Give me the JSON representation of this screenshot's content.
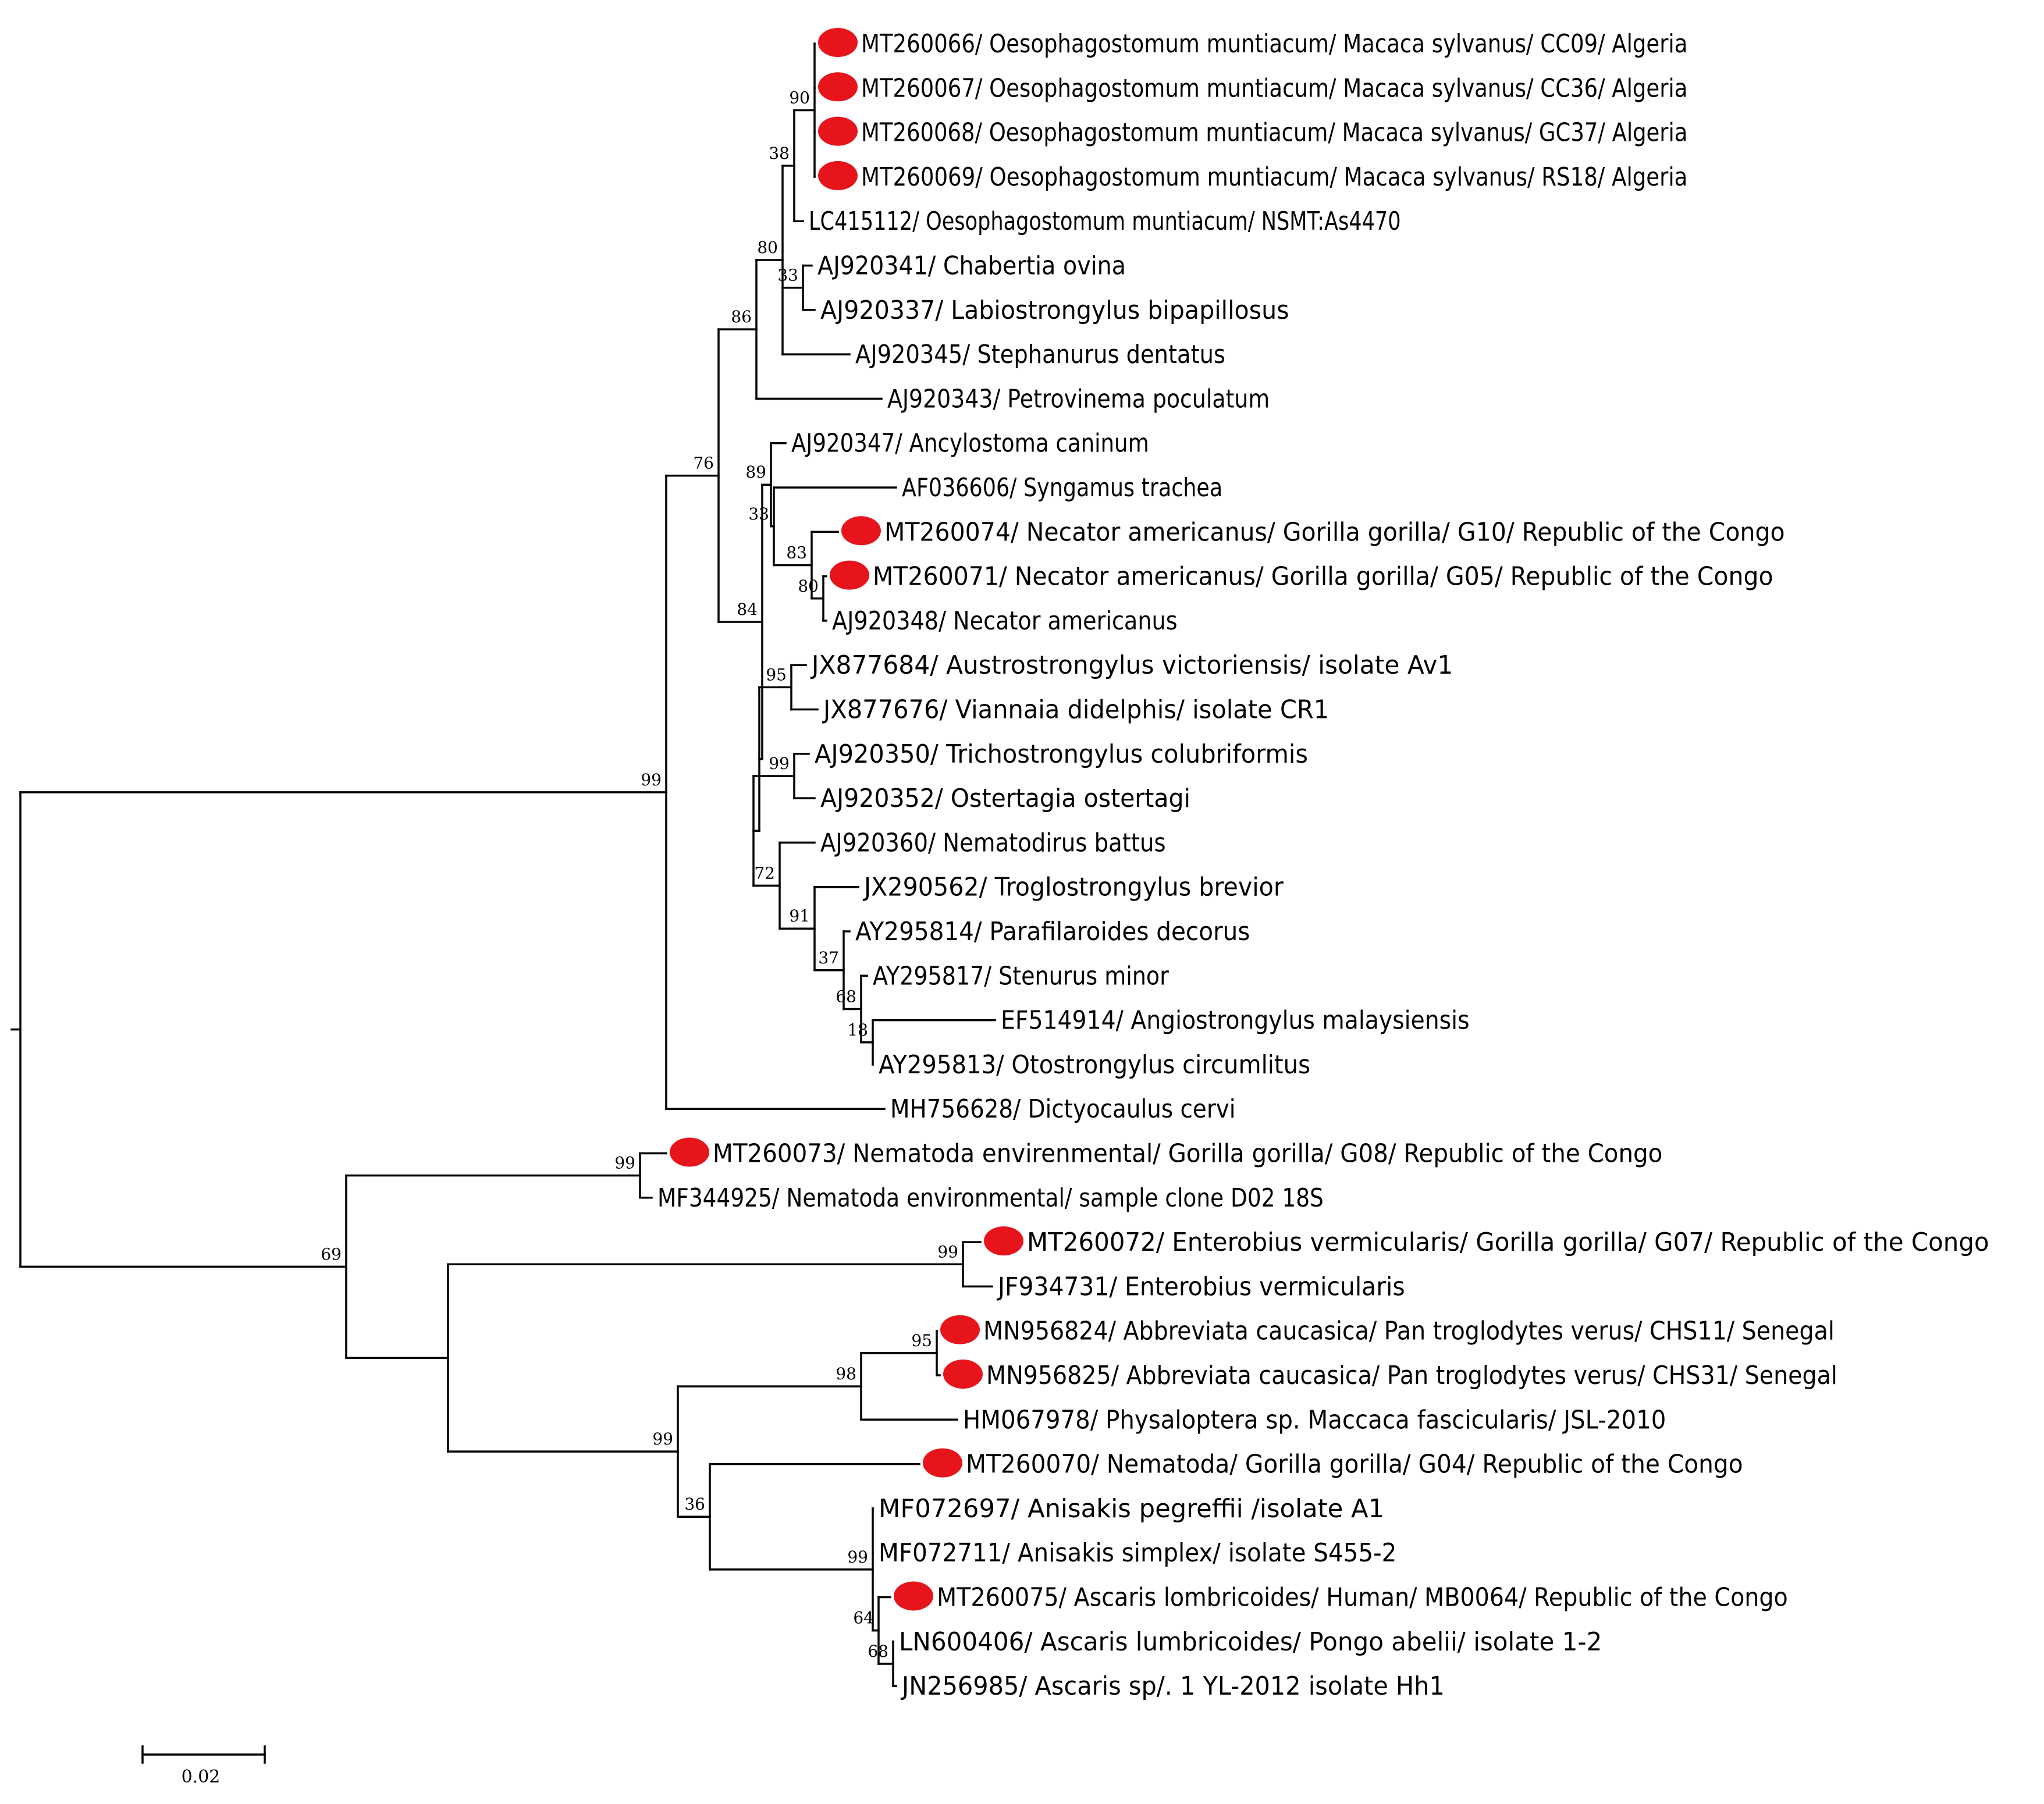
{
  "colors": {
    "marker": "#e8141b",
    "line": "#000000"
  },
  "tree": {
    "name": "root",
    "children": [
      {
        "boot": "99",
        "children": [
          {
            "boot": "76",
            "children": [
              {
                "boot": "86",
                "children": [
                  {
                    "boot": "80",
                    "children": [
                      {
                        "boot": "38",
                        "children": [
                          {
                            "boot": "90",
                            "children": [
                              {
                                "name": "MT260066/ Oesophagostomum muntiacum/ Macaca sylvanus/ CC09/ Algeria",
                                "marked": true
                              },
                              {
                                "name": "MT260067/ Oesophagostomum muntiacum/ Macaca sylvanus/ CC36/ Algeria",
                                "marked": true
                              },
                              {
                                "name": "MT260068/ Oesophagostomum muntiacum/ Macaca sylvanus/ GC37/ Algeria",
                                "marked": true
                              },
                              {
                                "name": "MT260069/ Oesophagostomum muntiacum/ Macaca sylvanus/ RS18/ Algeria",
                                "marked": true
                              }
                            ]
                          },
                          {
                            "name": "LC415112/ Oesophagostomum muntiacum/ NSMT:As4470"
                          }
                        ]
                      },
                      {
                        "boot": "33",
                        "children": [
                          {
                            "name": "AJ920341/ Chabertia ovina"
                          },
                          {
                            "name": "AJ920337/ Labiostrongylus bipapillosus"
                          }
                        ]
                      },
                      {
                        "name": "AJ920345/ Stephanurus dentatus"
                      }
                    ]
                  },
                  {
                    "name": "AJ920343/ Petrovinema poculatum"
                  }
                ]
              },
              {
                "boot": "84",
                "children": [
                  {
                    "boot": "89",
                    "children": [
                      {
                        "name": "AJ920347/ Ancylostoma caninum"
                      },
                      {
                        "boot": "33",
                        "children": [
                          {
                            "name": "AF036606/ Syngamus trachea"
                          },
                          {
                            "boot": "83",
                            "children": [
                              {
                                "name": "MT260074/ Necator americanus/ Gorilla gorilla/ G10/ Republic of the Congo",
                                "marked": true
                              },
                              {
                                "boot": "80",
                                "children": [
                                  {
                                    "name": "MT260071/ Necator americanus/ Gorilla gorilla/ G05/ Republic of the Congo",
                                    "marked": true
                                  },
                                  {
                                    "name": "AJ920348/ Necator americanus"
                                  }
                                ]
                              }
                            ]
                          }
                        ]
                      }
                    ]
                  },
                  {
                    "children": [
                      {
                        "boot": "95",
                        "children": [
                          {
                            "name": "JX877684/ Austrostrongylus victoriensis/ isolate Av1"
                          },
                          {
                            "name": "JX877676/ Viannaia didelphis/ isolate CR1"
                          }
                        ]
                      },
                      {
                        "children": [
                          {
                            "boot": "99",
                            "children": [
                              {
                                "name": "AJ920350/ Trichostrongylus colubriformis"
                              },
                              {
                                "name": "AJ920352/ Ostertagia ostertagi"
                              }
                            ]
                          },
                          {
                            "boot": "72",
                            "children": [
                              {
                                "name": "AJ920360/ Nematodirus battus"
                              },
                              {
                                "boot": "91",
                                "children": [
                                  {
                                    "name": "JX290562/ Troglostrongylus brevior"
                                  },
                                  {
                                    "boot": "37",
                                    "children": [
                                      {
                                        "name": "AY295814/ Parafilaroides decorus"
                                      },
                                      {
                                        "boot": "68",
                                        "children": [
                                          {
                                            "name": "AY295817/ Stenurus minor"
                                          },
                                          {
                                            "boot": "18",
                                            "children": [
                                              {
                                                "name": "EF514914/ Angiostrongylus malaysiensis"
                                              },
                                              {
                                                "name": "AY295813/ Otostrongylus circumlitus"
                                              }
                                            ]
                                          }
                                        ]
                                      }
                                    ]
                                  }
                                ]
                              }
                            ]
                          }
                        ]
                      }
                    ]
                  }
                ]
              }
            ]
          },
          {
            "name": "MH756628/ Dictyocaulus cervi"
          }
        ]
      },
      {
        "boot": "69",
        "children": [
          {
            "boot": "99",
            "children": [
              {
                "name": "MT260073/ Nematoda envirenmental/ Gorilla gorilla/ G08/ Republic of the Congo",
                "marked": true
              },
              {
                "name": "MF344925/ Nematoda environmental/ sample clone D02 18S"
              }
            ]
          },
          {
            "children": [
              {
                "boot": "99",
                "children": [
                  {
                    "name": "MT260072/ Enterobius vermicularis/ Gorilla gorilla/ G07/ Republic of the Congo",
                    "marked": true
                  },
                  {
                    "name": "JF934731/ Enterobius vermicularis"
                  }
                ]
              },
              {
                "boot": "99",
                "children": [
                  {
                    "boot": "98",
                    "children": [
                      {
                        "boot": "95",
                        "children": [
                          {
                            "name": "MN956824/ Abbreviata caucasica/ Pan troglodytes verus/ CHS11/ Senegal",
                            "marked": true
                          },
                          {
                            "name": "MN956825/ Abbreviata caucasica/ Pan troglodytes verus/ CHS31/ Senegal",
                            "marked": true
                          }
                        ]
                      },
                      {
                        "name": "HM067978/ Physaloptera sp. Maccaca fascicularis/ JSL-2010"
                      }
                    ]
                  },
                  {
                    "boot": "36",
                    "children": [
                      {
                        "name": "MT260070/ Nematoda/ Gorilla gorilla/ G04/ Republic of the Congo",
                        "marked": true
                      },
                      {
                        "boot": "99",
                        "children": [
                          {
                            "name": "MF072697/ Anisakis pegreffii  /isolate A1"
                          },
                          {
                            "name": "MF072711/ Anisakis simplex/ isolate S455-2"
                          },
                          {
                            "boot": "64",
                            "children": [
                              {
                                "name": "MT260075/ Ascaris lombricoides/  Human/ MB0064/ Republic of the Congo",
                                "marked": true
                              },
                              {
                                "boot": "68",
                                "children": [
                                  {
                                    "name": "LN600406/ Ascaris lumbricoides/ Pongo abelii/ isolate 1-2"
                                  },
                                  {
                                    "name": "JN256985/ Ascaris sp/. 1 YL-2012 isolate Hh1"
                                  }
                                ]
                              }
                            ]
                          }
                        ]
                      }
                    ]
                  }
                ]
              }
            ]
          }
        ]
      }
    ]
  },
  "scale_bar": {
    "label": "0.02"
  }
}
